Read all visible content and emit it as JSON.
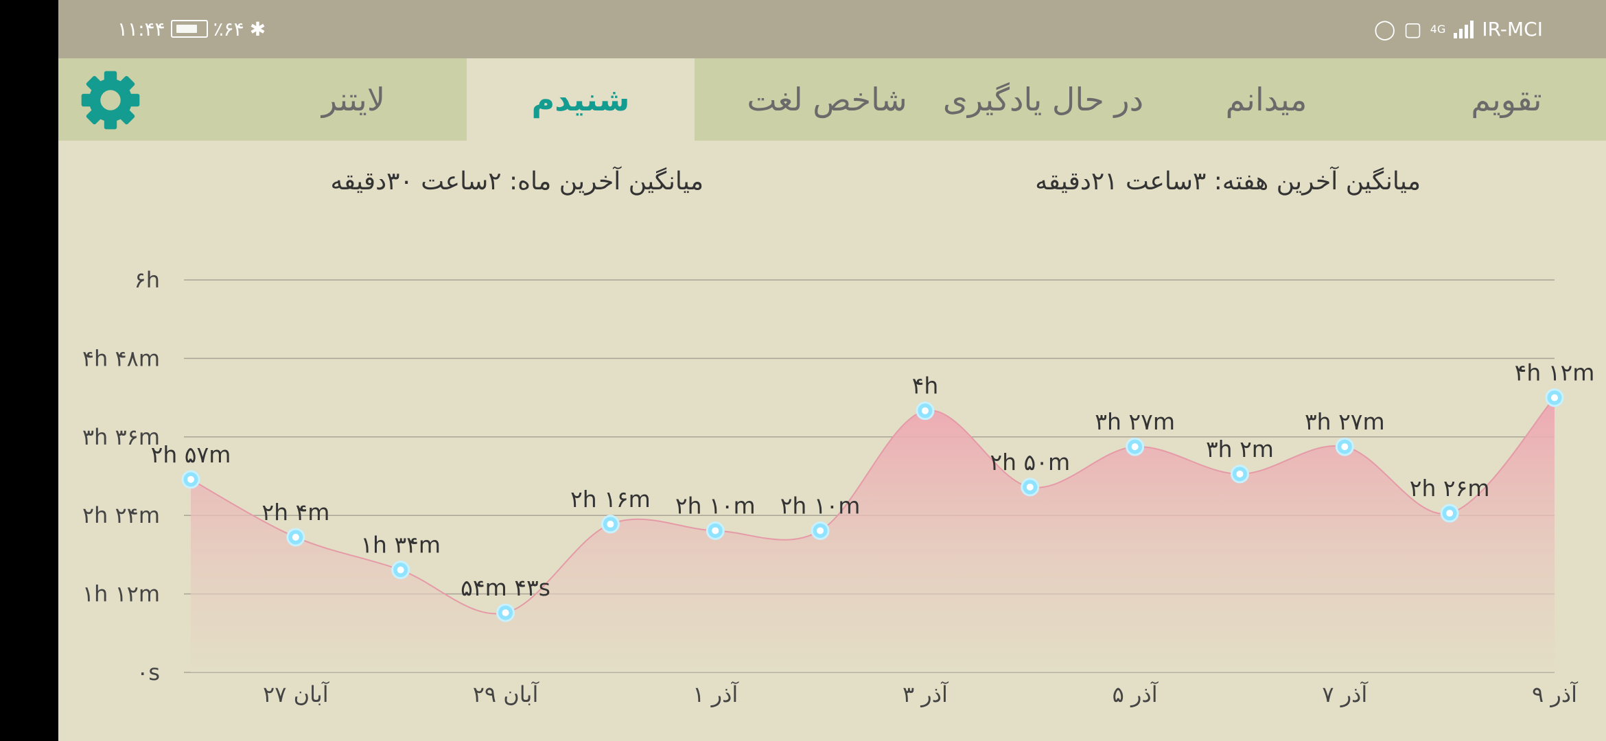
{
  "status_bar": {
    "time": "۱۱:۴۴",
    "battery": "٪۶۴",
    "network_type": "4G",
    "carrier": "IR-MCI",
    "icons": [
      "whatsapp-icon",
      "instagram-icon",
      "signal-icon",
      "bluetooth-icon",
      "battery-icon"
    ]
  },
  "tabs": [
    {
      "label": "تقویم",
      "active": false
    },
    {
      "label": "میدانم",
      "active": false
    },
    {
      "label": "در حال یادگیری",
      "active": false
    },
    {
      "label": "شاخص لغت",
      "active": false
    },
    {
      "label": "شنیدم",
      "active": true
    },
    {
      "label": "لایتنر",
      "active": false
    }
  ],
  "settings_icon": "gear-icon",
  "summary": {
    "week_average": "میانگین آخرین هفته: ۳ساعت  ۲۱دقیقه",
    "month_average": "میانگین آخرین ماه: ۲ساعت  ۳۰دقیقه"
  },
  "colors": {
    "accent": "#139c8f",
    "area_fill": "#eea6b1",
    "marker": "#8fe3ff"
  },
  "chart_data": {
    "type": "area",
    "x": [
      "26 آبان",
      "27 آبان",
      "28 آبان",
      "29 آبان",
      "30 آبان",
      "1 آذر",
      "2 آذر",
      "3 آذر",
      "4 آذر",
      "5 آذر",
      "6 آذر",
      "7 آذر",
      "8 آذر",
      "9 آذر"
    ],
    "tick_labels": [
      {
        "index": 1,
        "label": "۲۷ آبان"
      },
      {
        "index": 3,
        "label": "۲۹ آبان"
      },
      {
        "index": 5,
        "label": "۱ آذر"
      },
      {
        "index": 7,
        "label": "۳ آذر"
      },
      {
        "index": 9,
        "label": "۵ آذر"
      },
      {
        "index": 11,
        "label": "۷ آذر"
      },
      {
        "index": 13,
        "label": "۹ آذر"
      }
    ],
    "values_minutes": [
      177,
      124,
      94,
      54.7,
      136,
      130,
      130,
      240,
      170,
      207,
      182,
      207,
      146,
      252
    ],
    "data_labels": [
      "۲h ۵۷m",
      "۲h ۴m",
      "۱h ۳۴m",
      "۵۴m ۴۳s",
      "۲h ۱۶m",
      "۲h ۱۰m",
      "۲h ۱۰m",
      "۴h",
      "۲h ۵۰m",
      "۳h ۲۷m",
      "۳h ۲m",
      "۳h ۲۷m",
      "۲h ۲۶m",
      "۴h ۱۲m"
    ],
    "y_ticks_minutes": [
      0,
      72,
      144,
      216,
      288,
      360
    ],
    "y_tick_labels": [
      "۰s",
      "۱h ۱۲m",
      "۲h ۲۴m",
      "۳h ۳۶m",
      "۴h ۴۸m",
      "۶h"
    ],
    "ylim": [
      0,
      360
    ],
    "grid": true,
    "legend": "none"
  }
}
